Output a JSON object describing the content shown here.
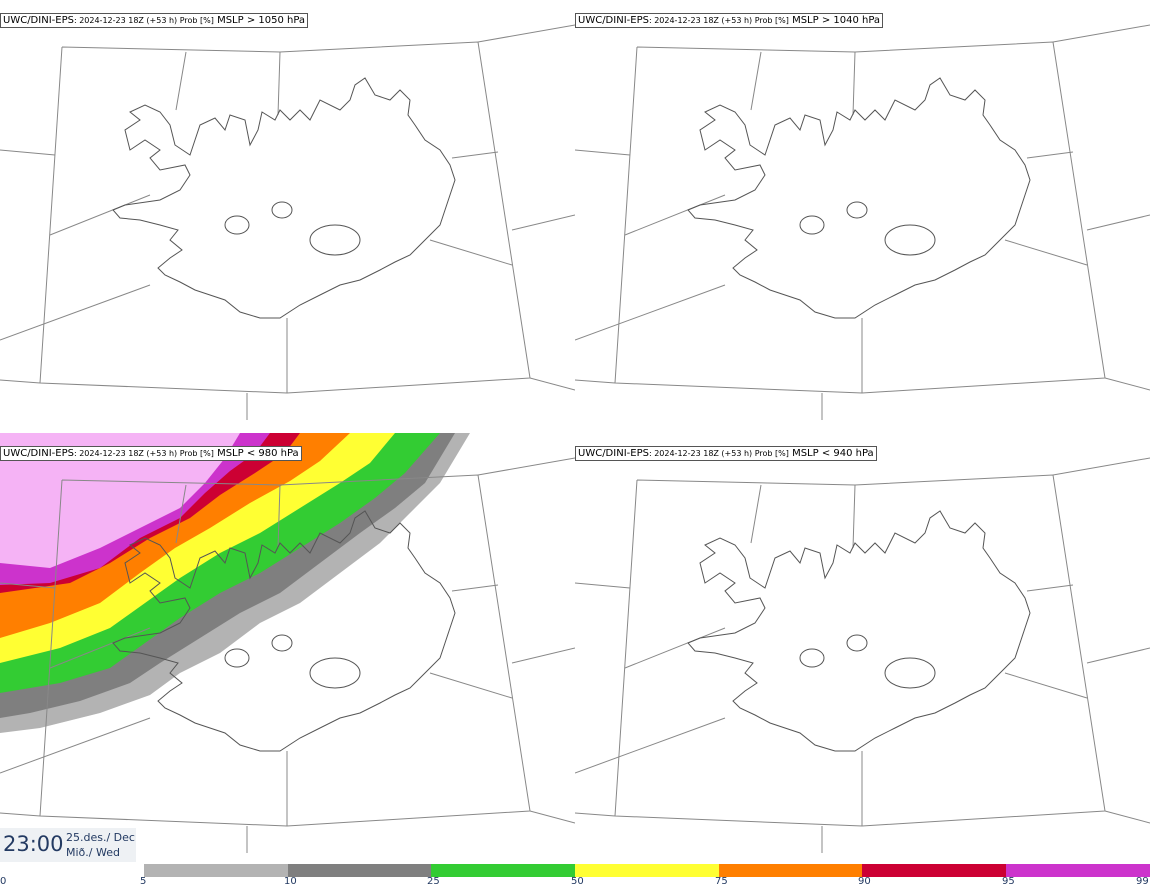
{
  "panels": [
    {
      "model": "UWC/DINI-EPS",
      "run": ": 2024-12-23 18Z (+53 h) Prob [%]",
      "threshold": "MSLP > 1050 hPa"
    },
    {
      "model": "UWC/DINI-EPS",
      "run": ": 2024-12-23 18Z (+53 h) Prob [%]",
      "threshold": "MSLP > 1040 hPa"
    },
    {
      "model": "UWC/DINI-EPS",
      "run": ": 2024-12-23 18Z (+53 h) Prob [%]",
      "threshold": "MSLP < 980 hPa"
    },
    {
      "model": "UWC/DINI-EPS",
      "run": ": 2024-12-23 18Z (+53 h) Prob [%]",
      "threshold": "MSLP < 940 hPa"
    }
  ],
  "valid_time": {
    "time": "23:00",
    "date_line1": "25.des./ Dec",
    "date_line2": "Mið./ Wed"
  },
  "colorbar": {
    "ticks": [
      "0",
      "5",
      "10",
      "25",
      "50",
      "75",
      "90",
      "95",
      "99"
    ],
    "colors": [
      "#b3b3b3",
      "#7f7f7f",
      "#33cc33",
      "#ffff33",
      "#ff7f00",
      "#cc0033",
      "#cc33cc",
      "#f5b3f5"
    ]
  }
}
